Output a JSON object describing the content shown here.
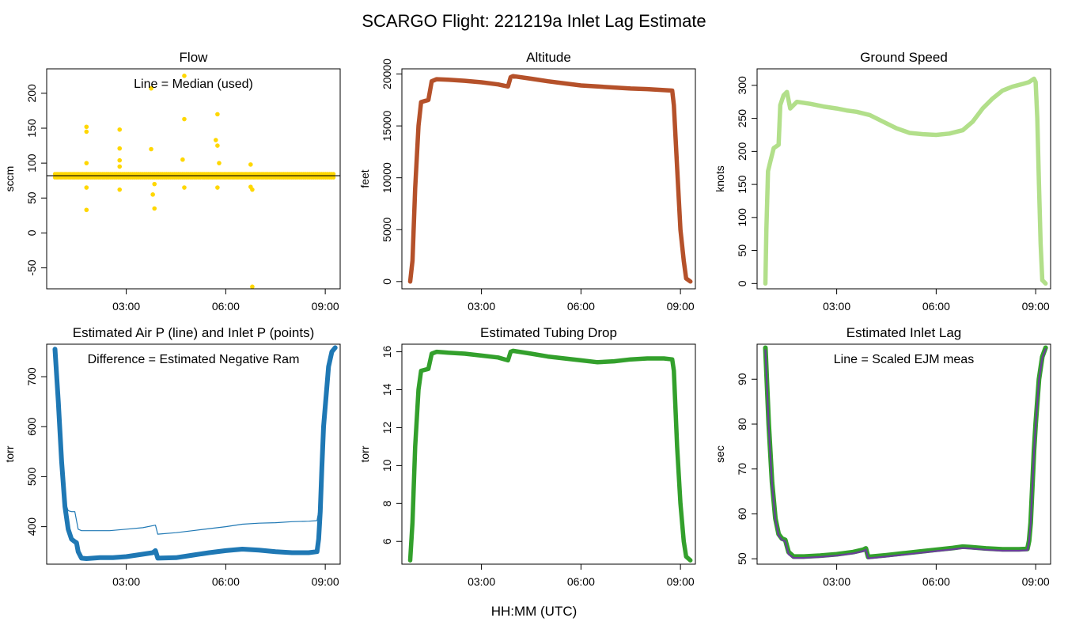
{
  "figure": {
    "title": "SCARGO Flight: 221219a  Inlet Lag Estimate",
    "xlabel": "HH:MM (UTC)"
  },
  "chart_data": [
    {
      "id": "flow",
      "type": "scatter",
      "title": "Flow",
      "ylabel": "sccm",
      "annotation": "Line = Median (used)",
      "xlim": [
        0.6,
        9.45
      ],
      "ylim": [
        -80,
        235
      ],
      "xticks": [
        3,
        6,
        9
      ],
      "xtick_labels": [
        "03:00",
        "06:00",
        "09:00"
      ],
      "yticks": [
        -50,
        0,
        50,
        100,
        150,
        200
      ],
      "ytick_labels": [
        "-50",
        "0",
        "50",
        "100",
        "150",
        "200"
      ],
      "point_color": "#FFD700",
      "hline": {
        "y": 82,
        "color": "#000000",
        "label": "Median"
      },
      "series": [
        {
          "name": "Flow",
          "style": "band",
          "x": [
            0.85,
            9.25
          ],
          "y_low": 79,
          "y_high": 85
        },
        {
          "name": "Flow outliers",
          "style": "points",
          "points": [
            [
              1.8,
              152
            ],
            [
              1.8,
              145
            ],
            [
              1.8,
              100
            ],
            [
              1.8,
              33
            ],
            [
              1.8,
              65
            ],
            [
              2.8,
              148
            ],
            [
              2.8,
              121
            ],
            [
              2.8,
              104
            ],
            [
              2.8,
              62
            ],
            [
              2.8,
              95
            ],
            [
              3.75,
              207
            ],
            [
              3.75,
              120
            ],
            [
              3.8,
              55
            ],
            [
              3.85,
              35
            ],
            [
              3.85,
              70
            ],
            [
              4.75,
              225
            ],
            [
              4.75,
              163
            ],
            [
              4.7,
              105
            ],
            [
              4.75,
              65
            ],
            [
              5.75,
              170
            ],
            [
              5.7,
              133
            ],
            [
              5.75,
              125
            ],
            [
              5.8,
              100
            ],
            [
              5.75,
              65
            ],
            [
              6.75,
              98
            ],
            [
              6.8,
              -77
            ],
            [
              6.8,
              62
            ],
            [
              6.75,
              66
            ]
          ]
        }
      ]
    },
    {
      "id": "altitude",
      "type": "line",
      "title": "Altitude",
      "ylabel": "feet",
      "xlim": [
        0.6,
        9.45
      ],
      "ylim": [
        -700,
        20500
      ],
      "xticks": [
        3,
        6,
        9
      ],
      "xtick_labels": [
        "03:00",
        "06:00",
        "09:00"
      ],
      "yticks": [
        0,
        5000,
        10000,
        15000,
        20000
      ],
      "ytick_labels": [
        "0",
        "5000",
        "10000",
        "15000",
        "20000"
      ],
      "series": [
        {
          "name": "Altitude",
          "color": "#B5512A",
          "x": [
            0.85,
            0.92,
            1.0,
            1.1,
            1.18,
            1.4,
            1.5,
            1.65,
            2.0,
            2.5,
            3.0,
            3.5,
            3.8,
            3.88,
            3.95,
            4.5,
            5.0,
            5.5,
            6.0,
            6.5,
            7.0,
            7.5,
            8.0,
            8.5,
            8.75,
            8.8,
            8.9,
            9.0,
            9.1,
            9.17,
            9.3
          ],
          "y": [
            0,
            2000,
            9000,
            15000,
            17300,
            17500,
            19300,
            19500,
            19450,
            19350,
            19200,
            19000,
            18800,
            19700,
            19800,
            19550,
            19300,
            19100,
            18900,
            18800,
            18700,
            18600,
            18550,
            18450,
            18400,
            17000,
            11000,
            5000,
            2000,
            300,
            0
          ]
        }
      ]
    },
    {
      "id": "ground_speed",
      "type": "line",
      "title": "Ground Speed",
      "ylabel": "knots",
      "xlim": [
        0.6,
        9.45
      ],
      "ylim": [
        -8,
        325
      ],
      "xticks": [
        3,
        6,
        9
      ],
      "xtick_labels": [
        "03:00",
        "06:00",
        "09:00"
      ],
      "yticks": [
        0,
        50,
        100,
        150,
        200,
        250,
        300
      ],
      "ytick_labels": [
        "0",
        "50",
        "100",
        "150",
        "200",
        "250",
        "300"
      ],
      "series": [
        {
          "name": "Ground Speed",
          "color": "#B2DF8A",
          "x": [
            0.85,
            0.88,
            0.93,
            1.0,
            1.1,
            1.25,
            1.3,
            1.4,
            1.5,
            1.6,
            1.8,
            2.2,
            2.6,
            3.0,
            3.3,
            3.6,
            4.0,
            4.4,
            4.8,
            5.2,
            5.6,
            6.0,
            6.4,
            6.8,
            7.1,
            7.4,
            7.7,
            8.0,
            8.3,
            8.6,
            8.8,
            8.95,
            9.0,
            9.05,
            9.1,
            9.15,
            9.2,
            9.3
          ],
          "y": [
            0,
            80,
            170,
            185,
            205,
            210,
            270,
            285,
            290,
            265,
            275,
            272,
            268,
            265,
            262,
            260,
            255,
            245,
            235,
            228,
            226,
            225,
            227,
            232,
            245,
            265,
            280,
            292,
            298,
            302,
            305,
            310,
            305,
            250,
            150,
            60,
            5,
            0
          ]
        }
      ]
    },
    {
      "id": "air_inlet_pressure",
      "type": "line",
      "title": "Estimated Air P (line) and Inlet P (points)",
      "ylabel": "torr",
      "annotation": "Difference = Estimated Negative Ram",
      "xlim": [
        0.6,
        9.45
      ],
      "ylim": [
        325,
        765
      ],
      "xticks": [
        3,
        6,
        9
      ],
      "xtick_labels": [
        "03:00",
        "06:00",
        "09:00"
      ],
      "yticks": [
        400,
        500,
        600,
        700
      ],
      "ytick_labels": [
        "400",
        "500",
        "600",
        "700"
      ],
      "series": [
        {
          "name": "Inlet P (points)",
          "color": "#1F78B4",
          "style": "thick",
          "x": [
            0.85,
            0.95,
            1.05,
            1.15,
            1.25,
            1.35,
            1.45,
            1.5,
            1.55,
            1.65,
            1.8,
            2.2,
            2.6,
            3.0,
            3.5,
            3.8,
            3.88,
            3.95,
            4.5,
            5.0,
            5.5,
            6.0,
            6.5,
            7.0,
            7.5,
            8.0,
            8.5,
            8.75,
            8.8,
            8.85,
            8.9,
            8.95,
            9.0,
            9.05,
            9.1,
            9.2,
            9.3
          ],
          "y": [
            755,
            650,
            530,
            440,
            395,
            375,
            370,
            368,
            350,
            337,
            336,
            338,
            338,
            340,
            345,
            348,
            352,
            337,
            338,
            343,
            348,
            352,
            355,
            353,
            350,
            348,
            348,
            350,
            375,
            430,
            520,
            600,
            640,
            680,
            720,
            750,
            758
          ]
        },
        {
          "name": "Air P (line)",
          "color": "#1F78B4",
          "style": "thin",
          "x": [
            0.85,
            0.95,
            1.05,
            1.15,
            1.25,
            1.35,
            1.45,
            1.55,
            1.65,
            2.0,
            2.5,
            3.0,
            3.5,
            3.88,
            3.95,
            4.5,
            5.0,
            5.5,
            6.0,
            6.5,
            7.0,
            7.5,
            8.0,
            8.5,
            8.75,
            8.8,
            8.85,
            8.9,
            8.95,
            9.0,
            9.1,
            9.2,
            9.3
          ],
          "y": [
            755,
            650,
            530,
            450,
            432,
            430,
            430,
            395,
            392,
            392,
            392,
            395,
            398,
            403,
            385,
            388,
            392,
            396,
            400,
            405,
            407,
            408,
            410,
            411,
            412,
            430,
            480,
            560,
            620,
            670,
            720,
            750,
            758
          ]
        }
      ]
    },
    {
      "id": "tubing_drop",
      "type": "line",
      "title": "Estimated Tubing Drop",
      "ylabel": "torr",
      "xlim": [
        0.6,
        9.45
      ],
      "ylim": [
        4.8,
        16.4
      ],
      "xticks": [
        3,
        6,
        9
      ],
      "xtick_labels": [
        "03:00",
        "06:00",
        "09:00"
      ],
      "yticks": [
        6,
        8,
        10,
        12,
        14,
        16
      ],
      "ytick_labels": [
        "6",
        "8",
        "10",
        "12",
        "14",
        "16"
      ],
      "series": [
        {
          "name": "Tubing Drop",
          "color": "#33A02C",
          "x": [
            0.85,
            0.92,
            1.0,
            1.1,
            1.18,
            1.4,
            1.5,
            1.65,
            2.0,
            2.5,
            3.0,
            3.5,
            3.8,
            3.88,
            3.95,
            4.5,
            5.0,
            5.5,
            6.0,
            6.5,
            7.0,
            7.5,
            8.0,
            8.5,
            8.75,
            8.8,
            8.9,
            9.0,
            9.1,
            9.17,
            9.3
          ],
          "y": [
            5,
            7,
            11,
            14,
            15,
            15.1,
            15.9,
            16.0,
            15.95,
            15.9,
            15.8,
            15.7,
            15.55,
            16.0,
            16.05,
            15.9,
            15.75,
            15.65,
            15.55,
            15.45,
            15.5,
            15.6,
            15.65,
            15.65,
            15.6,
            15,
            11,
            8,
            6,
            5.2,
            5
          ]
        }
      ]
    },
    {
      "id": "inlet_lag",
      "type": "line",
      "title": "Estimated Inlet Lag",
      "ylabel": "sec",
      "annotation": "Line = Scaled EJM meas",
      "xlim": [
        0.6,
        9.45
      ],
      "ylim": [
        48.8,
        97.8
      ],
      "xticks": [
        3,
        6,
        9
      ],
      "xtick_labels": [
        "03:00",
        "06:00",
        "09:00"
      ],
      "yticks": [
        50,
        60,
        70,
        80,
        90
      ],
      "ytick_labels": [
        "50",
        "60",
        "70",
        "80",
        "90"
      ],
      "series": [
        {
          "name": "Inlet Lag (points)",
          "color": "#33A02C",
          "style": "thick",
          "x": [
            0.85,
            0.95,
            1.05,
            1.15,
            1.25,
            1.35,
            1.45,
            1.55,
            1.7,
            2.0,
            2.5,
            3.0,
            3.5,
            3.8,
            3.88,
            3.95,
            4.5,
            5.0,
            5.5,
            6.0,
            6.5,
            6.8,
            7.0,
            7.5,
            8.0,
            8.5,
            8.75,
            8.8,
            8.85,
            8.9,
            8.95,
            9.0,
            9.05,
            9.1,
            9.2,
            9.3
          ],
          "y": [
            97,
            80,
            67,
            59,
            55.5,
            54.5,
            54.2,
            51.5,
            50.5,
            50.5,
            50.7,
            51,
            51.5,
            52,
            52.3,
            50.4,
            50.8,
            51.2,
            51.6,
            52,
            52.4,
            52.7,
            52.6,
            52.3,
            52.1,
            52.1,
            52.2,
            54,
            58,
            66,
            74,
            80,
            85,
            90,
            95,
            97
          ]
        },
        {
          "name": "Scaled EJM meas",
          "color": "#6A3D9A",
          "style": "line",
          "x": [
            0.85,
            0.95,
            1.05,
            1.15,
            1.25,
            1.35,
            1.45,
            1.55,
            1.7,
            2.0,
            2.5,
            3.0,
            3.5,
            3.8,
            3.88,
            3.95,
            4.5,
            5.0,
            5.5,
            6.0,
            6.5,
            6.8,
            7.0,
            7.5,
            8.0,
            8.5,
            8.75,
            8.8,
            8.85,
            8.9,
            8.95,
            9.0,
            9.05,
            9.1,
            9.2,
            9.3
          ],
          "y": [
            96.5,
            79.5,
            66.5,
            58.7,
            55.2,
            54.2,
            53.9,
            51.0,
            50.2,
            50.2,
            50.4,
            50.7,
            51.2,
            51.7,
            52.0,
            50.1,
            50.5,
            50.9,
            51.3,
            51.7,
            52.1,
            52.4,
            52.3,
            52.0,
            51.8,
            51.8,
            51.9,
            53.7,
            57.7,
            65.7,
            73.7,
            79.7,
            84.7,
            89.7,
            94.7,
            96.7
          ]
        }
      ]
    }
  ]
}
